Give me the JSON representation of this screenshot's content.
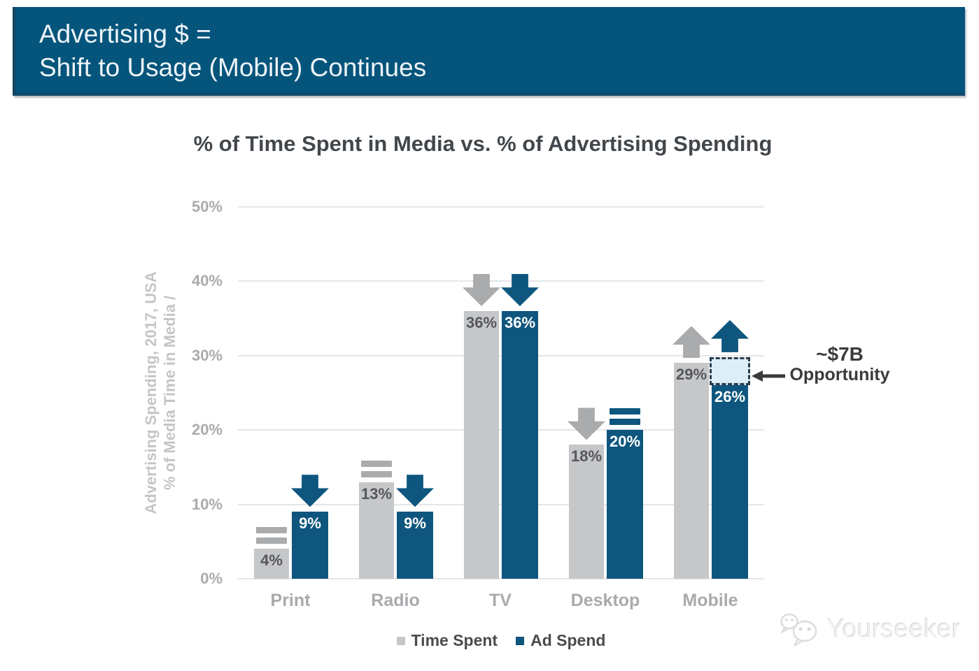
{
  "banner": {
    "line1": "Advertising $ =",
    "line2": "Shift to Usage (Mobile) Continues",
    "bg_color": "#05547b"
  },
  "chart_data": {
    "type": "bar",
    "title": "% of Time Spent in Media vs. % of Advertising Spending",
    "categories": [
      "Print",
      "Radio",
      "TV",
      "Desktop",
      "Mobile"
    ],
    "series": [
      {
        "name": "Time Spent",
        "color": "#c6c7c9",
        "label_color": "#55575b",
        "trend_color": "#a9abad",
        "values": [
          4,
          13,
          36,
          18,
          29
        ],
        "data_labels": [
          "4%",
          "13%",
          "36%",
          "18%",
          "29%"
        ],
        "trend": [
          "flat",
          "flat",
          "down",
          "down",
          "up"
        ]
      },
      {
        "name": "Ad Spend",
        "color": "#0e567e",
        "label_color": "#ffffff",
        "trend_color": "#0e567e",
        "values": [
          9,
          9,
          36,
          20,
          26
        ],
        "data_labels": [
          "9%",
          "9%",
          "36%",
          "20%",
          "26%"
        ],
        "trend": [
          "down",
          "down",
          "down",
          "flat",
          "up"
        ]
      }
    ],
    "ylabel_lines": [
      "% of Media Time in Media /",
      "Advertising Spending, 2017, USA"
    ],
    "yticks": [
      {
        "label": "0%",
        "value": 0
      },
      {
        "label": "10%",
        "value": 10
      },
      {
        "label": "20%",
        "value": 20
      },
      {
        "label": "30%",
        "value": 30
      },
      {
        "label": "40%",
        "value": 40
      },
      {
        "label": "50%",
        "value": 50
      }
    ],
    "ylim": [
      0,
      50
    ],
    "grid": true,
    "legend_position": "bottom",
    "annotation": {
      "line1": "~$7B",
      "line2": "Opportunity",
      "category": "Mobile",
      "series": "Ad Spend",
      "box_from": 26,
      "box_to": 29.8,
      "box_fill": "#ddeef8",
      "box_border": "#2b3c4b",
      "text_color": "#3a3b3d"
    }
  },
  "watermark": {
    "text": "Yourseeker"
  }
}
